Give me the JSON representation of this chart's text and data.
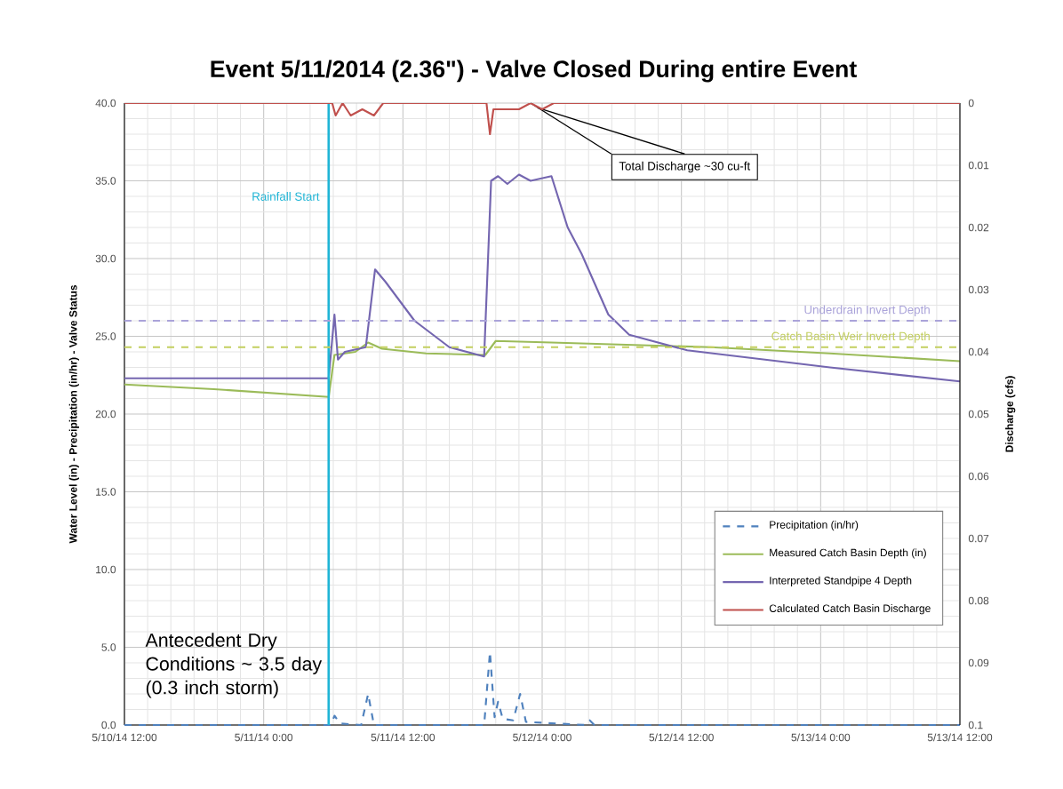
{
  "chart_data": {
    "type": "line",
    "title": "Event 5/11/2014 (2.36\") - Valve Closed During entire Event",
    "ylabel": "Water Level (in) - Precipitation (in/hr) - Valve Status",
    "y2label": "Discharge (cfs)",
    "xlim": [
      "2014-05-10T12:00",
      "2014-05-13T12:00"
    ],
    "xticks": [
      {
        "value": "2014-05-10T12:00",
        "label": "5/10/14 12:00"
      },
      {
        "value": "2014-05-11T00:00",
        "label": "5/11/14 0:00"
      },
      {
        "value": "2014-05-11T12:00",
        "label": "5/11/14 12:00"
      },
      {
        "value": "2014-05-12T00:00",
        "label": "5/12/14 0:00"
      },
      {
        "value": "2014-05-12T12:00",
        "label": "5/12/14 12:00"
      },
      {
        "value": "2014-05-13T00:00",
        "label": "5/13/14 0:00"
      },
      {
        "value": "2014-05-13T12:00",
        "label": "5/13/14 12:00"
      }
    ],
    "ylim": [
      0,
      40
    ],
    "yticks": [
      {
        "value": 0,
        "label": "0.0"
      },
      {
        "value": 5,
        "label": "5.0"
      },
      {
        "value": 10,
        "label": "10.0"
      },
      {
        "value": 15,
        "label": "15.0"
      },
      {
        "value": 20,
        "label": "20.0"
      },
      {
        "value": 25,
        "label": "25.0"
      },
      {
        "value": 30,
        "label": "30.0"
      },
      {
        "value": 35,
        "label": "35.0"
      },
      {
        "value": 40,
        "label": "40.0"
      }
    ],
    "y2lim": [
      0.1,
      0
    ],
    "y2ticks": [
      0,
      0.01,
      0.02,
      0.03,
      0.04,
      0.05,
      0.06,
      0.07,
      0.08,
      0.09,
      0.1
    ],
    "grid": true,
    "legend": "bottom right",
    "marker": "none",
    "series": [
      {
        "name": "Precipitation (in/hr)",
        "color": "#4f81bd",
        "line_style": "dashed",
        "x": [
          "2014-05-10T12:00",
          "2014-05-11T05:48",
          "2014-05-11T06:06",
          "2014-05-11T06:36",
          "2014-05-11T08:24",
          "2014-05-11T09:00",
          "2014-05-11T09:30",
          "2014-05-11T19:00",
          "2014-05-11T19:30",
          "2014-05-11T19:54",
          "2014-05-11T20:12",
          "2014-05-11T20:36",
          "2014-05-11T21:30",
          "2014-05-11T22:06",
          "2014-05-11T22:36",
          "2014-05-12T03:42",
          "2014-05-12T04:06",
          "2014-05-12T04:30",
          "2014-05-13T12:00"
        ],
        "values": [
          0,
          0,
          0.6,
          0.1,
          0,
          2.0,
          0,
          0,
          4.7,
          0.5,
          1.5,
          0.4,
          0.3,
          2.0,
          0.2,
          0,
          0.3,
          0,
          0
        ]
      },
      {
        "name": "Measured Catch Basin Depth (in)",
        "color": "#9bbb59",
        "line_style": "solid",
        "x": [
          "2014-05-10T12:00",
          "2014-05-10T19:42",
          "2014-05-11T05:36",
          "2014-05-11T06:06",
          "2014-05-11T07:54",
          "2014-05-11T09:00",
          "2014-05-11T10:12",
          "2014-05-11T14:00",
          "2014-05-11T19:06",
          "2014-05-11T20:00",
          "2014-05-12T00:48",
          "2014-05-12T14:30",
          "2014-05-13T00:48",
          "2014-05-13T12:00"
        ],
        "values": [
          21.9,
          21.6,
          21.1,
          23.8,
          24.0,
          24.6,
          24.2,
          23.9,
          23.8,
          24.7,
          24.6,
          24.3,
          23.9,
          23.4
        ]
      },
      {
        "name": "Interpreted Standpipe 4 Depth",
        "color": "#7466b0",
        "line_style": "solid",
        "x": [
          "2014-05-10T12:00",
          "2014-05-11T05:36",
          "2014-05-11T06:06",
          "2014-05-11T06:24",
          "2014-05-11T07:00",
          "2014-05-11T08:48",
          "2014-05-11T09:36",
          "2014-05-11T10:30",
          "2014-05-11T13:00",
          "2014-05-11T16:00",
          "2014-05-11T19:00",
          "2014-05-11T19:36",
          "2014-05-11T20:12",
          "2014-05-11T21:00",
          "2014-05-11T22:00",
          "2014-05-11T23:00",
          "2014-05-12T00:48",
          "2014-05-12T02:12",
          "2014-05-12T03:24",
          "2014-05-12T05:42",
          "2014-05-12T07:30",
          "2014-05-12T12:30",
          "2014-05-13T00:48",
          "2014-05-13T12:00"
        ],
        "values": [
          22.3,
          22.3,
          26.4,
          23.5,
          24.0,
          24.3,
          29.3,
          28.5,
          26.0,
          24.3,
          23.7,
          35.0,
          35.3,
          34.8,
          35.4,
          35.0,
          35.3,
          32.0,
          30.3,
          26.4,
          25.1,
          24.1,
          23.0,
          22.1
        ]
      },
      {
        "name": "Calculated Catch Basin Discharge",
        "color": "#c0504d",
        "line_style": "solid",
        "axis": "y2",
        "x": [
          "2014-05-10T12:00",
          "2014-05-11T05:54",
          "2014-05-11T06:12",
          "2014-05-11T06:48",
          "2014-05-11T07:30",
          "2014-05-11T08:30",
          "2014-05-11T09:30",
          "2014-05-11T10:18",
          "2014-05-11T19:12",
          "2014-05-11T19:30",
          "2014-05-11T19:48",
          "2014-05-11T22:00",
          "2014-05-11T23:00",
          "2014-05-12T00:00",
          "2014-05-12T01:00",
          "2014-05-13T12:00"
        ],
        "values": [
          0,
          0,
          0.002,
          0,
          0.002,
          0.001,
          0.002,
          0,
          0,
          0.005,
          0.001,
          0.001,
          0,
          0.001,
          0,
          0
        ]
      }
    ],
    "ref_lines": [
      {
        "axis": "x",
        "value": "2014-05-11T05:36",
        "label": "Rainfall Start",
        "color": "#1fb5d6",
        "line_style": "solid"
      },
      {
        "axis": "y",
        "value": 26.0,
        "label": "Underdrain Invert Depth",
        "color": "#aaa3d9",
        "line_style": "dashed"
      },
      {
        "axis": "y",
        "value": 24.3,
        "label": "Catch Basin Weir Invert Depth",
        "color": "#c3cf5f",
        "line_style": "dashed"
      }
    ],
    "annotations": [
      "Antecedent Dry Conditions ~ 3.5 day (0.3 inch storm)",
      {
        "text": "Total Discharge ~30 cu-ft",
        "x": "2014-05-11T23:00",
        "y": 40
      }
    ]
  }
}
